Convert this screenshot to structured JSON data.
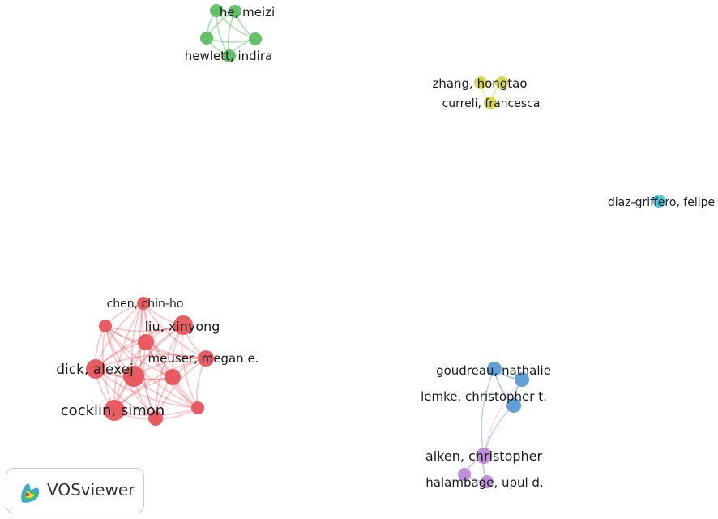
{
  "clusters": {
    "red": "#e8545a",
    "green": "#5cbf60",
    "yellow": "#d8d64a",
    "cyan": "#3fc9d8",
    "blue": "#5b9bd5",
    "purple": "#b88ad8"
  },
  "labels": {
    "he_meizi": "he, meizi",
    "hewlett_indira": "hewlett, indira",
    "zhang_hongtao": "zhang, hongtao",
    "curreli_francesca": "curreli, francesca",
    "diaz_griffero_felipe": "diaz-griffero, felipe",
    "chen_chin_ho": "chen, chin-ho",
    "liu_xinyong": "liu, xinyong",
    "meuser_megan_e": "meuser, megan e.",
    "dick_alexej": "dick, alexej",
    "cocklin_simon": "cocklin, simon",
    "goudreau_nathalie": "goudreau, nathalie",
    "lemke_christopher_t": "lemke, christopher t.",
    "aiken_christopher": "aiken, christopher",
    "halambage_upul_d": "halambage, upul d."
  },
  "logo": {
    "text": "VOSviewer",
    "icon": "vosviewer-density-icon"
  }
}
